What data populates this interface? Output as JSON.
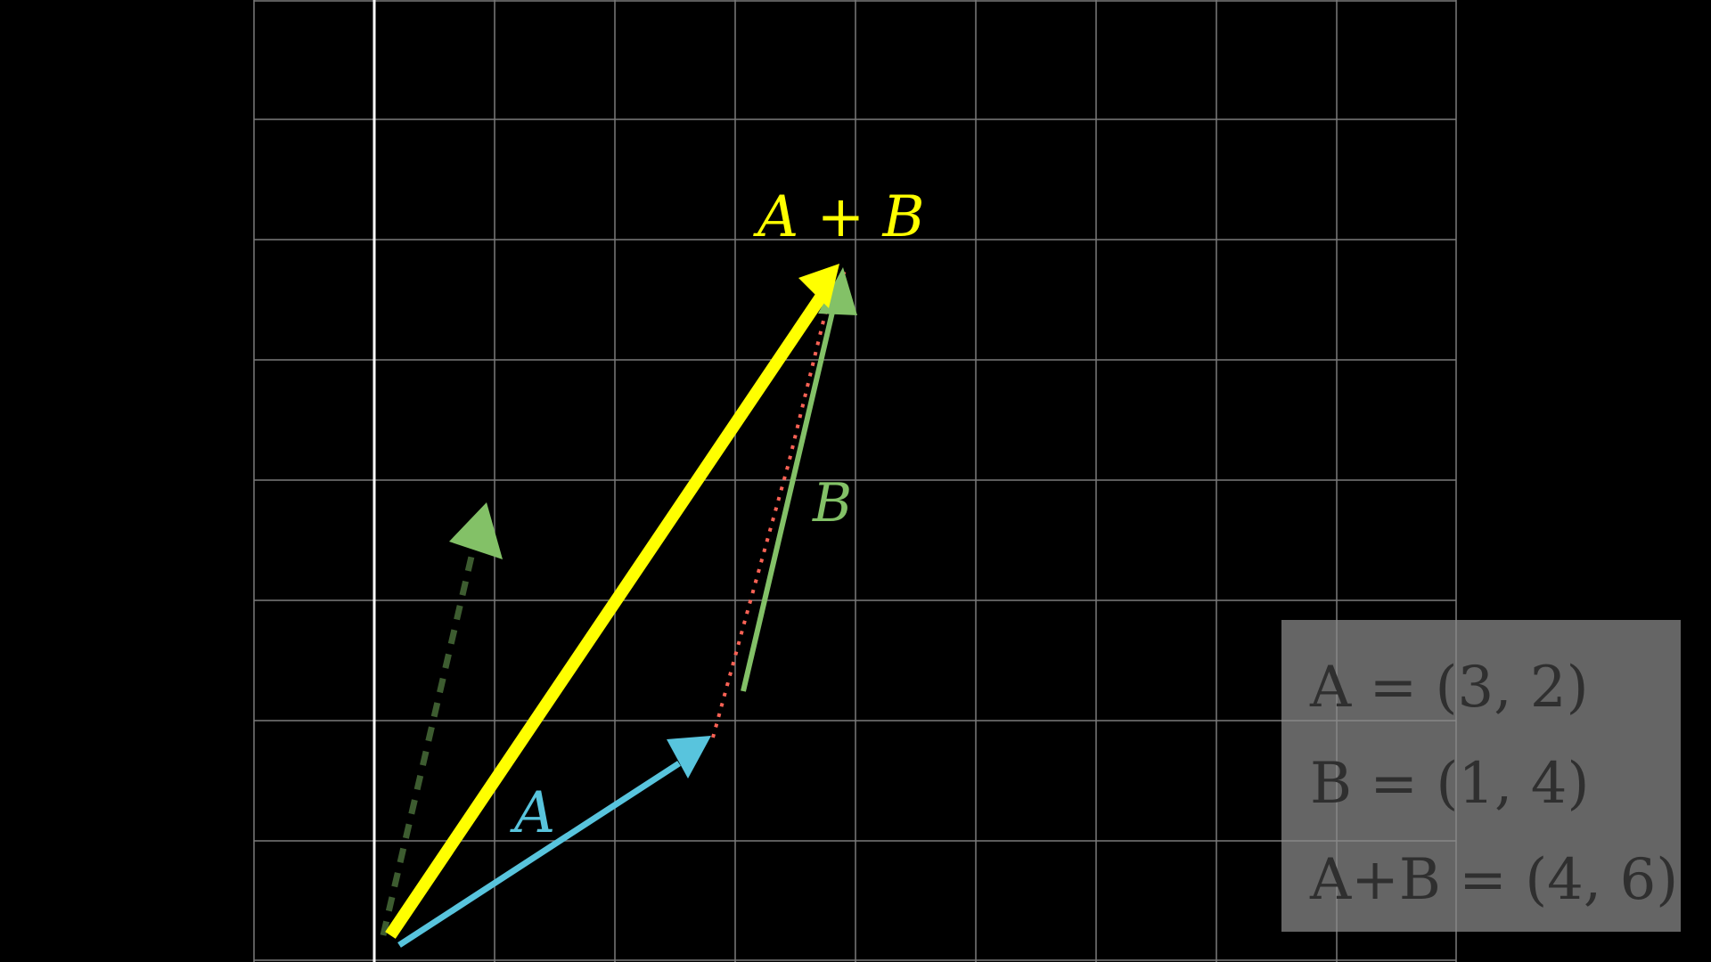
{
  "colors": {
    "background": "#000000",
    "grid": "#7a7a7a",
    "axis": "#ffffff",
    "vector_a": "#58c4dd",
    "vector_b": "#83c167",
    "vector_sum": "#ffff00",
    "vector_b_dashed": "#3d5c30",
    "dotted_path": "#fc6255",
    "panel": "#8c8c8c",
    "panel_text": "#2f2f2f"
  },
  "labels": {
    "a": "A",
    "b": "B",
    "sum": "A + B"
  },
  "info_panel": {
    "line_a": "A = (3, 2)",
    "line_b": "B = (1, 4)",
    "line_sum": "A+B = (4, 6)"
  }
}
